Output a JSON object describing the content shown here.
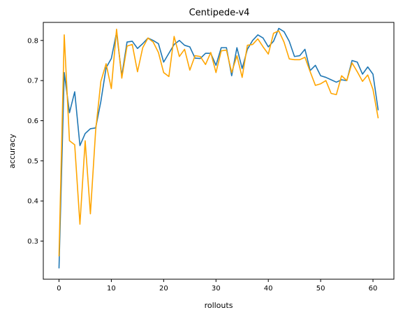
{
  "chart_data": {
    "type": "line",
    "title": "Centipede-v4",
    "xlabel": "rollouts",
    "ylabel": "accuracy",
    "xlim": [
      -3,
      64
    ],
    "ylim": [
      0.205,
      0.845
    ],
    "xticks": [
      0,
      10,
      20,
      30,
      40,
      50,
      60
    ],
    "yticks": [
      0.3,
      0.4,
      0.5,
      0.6,
      0.7,
      0.8
    ],
    "grid": false,
    "legend": "none",
    "x": [
      0,
      1,
      2,
      3,
      4,
      5,
      6,
      7,
      8,
      9,
      10,
      11,
      12,
      13,
      14,
      15,
      16,
      17,
      18,
      19,
      20,
      21,
      22,
      23,
      24,
      25,
      26,
      27,
      28,
      29,
      30,
      31,
      32,
      33,
      34,
      35,
      36,
      37,
      38,
      39,
      40,
      41,
      42,
      43,
      44,
      45,
      46,
      47,
      48,
      49,
      50,
      51,
      52,
      53,
      54,
      55,
      56,
      57,
      58,
      59,
      60,
      61
    ],
    "series": [
      {
        "color": "#1f77b4",
        "values": [
          0.232,
          0.72,
          0.62,
          0.672,
          0.538,
          0.568,
          0.58,
          0.582,
          0.648,
          0.732,
          0.755,
          0.82,
          0.712,
          0.796,
          0.798,
          0.78,
          0.792,
          0.806,
          0.8,
          0.792,
          0.746,
          0.768,
          0.79,
          0.8,
          0.788,
          0.784,
          0.756,
          0.755,
          0.768,
          0.768,
          0.738,
          0.782,
          0.782,
          0.712,
          0.782,
          0.73,
          0.778,
          0.8,
          0.814,
          0.806,
          0.784,
          0.798,
          0.83,
          0.822,
          0.798,
          0.76,
          0.762,
          0.778,
          0.725,
          0.738,
          0.712,
          0.708,
          0.702,
          0.696,
          0.702,
          0.7,
          0.75,
          0.746,
          0.716,
          0.734,
          0.716,
          0.626
        ]
      },
      {
        "color": "#ffa500",
        "values": [
          0.262,
          0.814,
          0.55,
          0.54,
          0.342,
          0.55,
          0.368,
          0.575,
          0.698,
          0.742,
          0.68,
          0.828,
          0.706,
          0.786,
          0.79,
          0.722,
          0.782,
          0.806,
          0.796,
          0.77,
          0.72,
          0.71,
          0.81,
          0.76,
          0.778,
          0.726,
          0.762,
          0.76,
          0.74,
          0.77,
          0.72,
          0.774,
          0.776,
          0.72,
          0.762,
          0.708,
          0.788,
          0.79,
          0.804,
          0.784,
          0.766,
          0.818,
          0.824,
          0.796,
          0.754,
          0.752,
          0.752,
          0.758,
          0.722,
          0.688,
          0.692,
          0.7,
          0.668,
          0.665,
          0.712,
          0.7,
          0.744,
          0.722,
          0.698,
          0.714,
          0.678,
          0.606
        ]
      }
    ]
  }
}
